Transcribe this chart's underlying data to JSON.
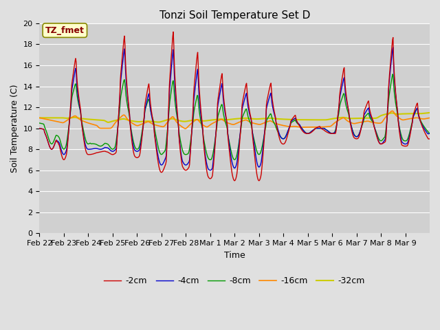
{
  "title": "Tonzi Soil Temperature Set D",
  "xlabel": "Time",
  "ylabel": "Soil Temperature (C)",
  "annotation": "TZ_fmet",
  "ylim": [
    0,
    20
  ],
  "x_tick_labels": [
    "Feb 22",
    "Feb 23",
    "Feb 24",
    "Feb 25",
    "Feb 26",
    "Feb 27",
    "Feb 28",
    "Mar 1",
    "Mar 2",
    "Mar 3",
    "Mar 4",
    "Mar 5",
    "Mar 6",
    "Mar 7",
    "Mar 8",
    "Mar 9"
  ],
  "colors": {
    "-2cm": "#cc0000",
    "-4cm": "#0000cc",
    "-8cm": "#009900",
    "-16cm": "#ff8800",
    "-32cm": "#cccc00"
  },
  "legend_entries": [
    "-2cm",
    "-4cm",
    "-8cm",
    "-16cm",
    "-32cm"
  ],
  "fig_facecolor": "#e0e0e0",
  "plot_bg_color": "#d0d0d0",
  "grid_color": "#ffffff",
  "title_fontsize": 11,
  "label_fontsize": 9,
  "tick_fontsize": 8,
  "annotation_bg": "#ffffcc",
  "annotation_color": "#880000",
  "annotation_border": "#888800",
  "annotation_fontsize": 9,
  "legend_fontsize": 9
}
